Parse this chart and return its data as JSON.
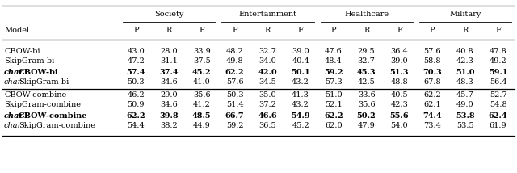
{
  "col_groups": [
    "Society",
    "Entertainment",
    "Healthcare",
    "Military"
  ],
  "sub_cols": [
    "P",
    "R",
    "F"
  ],
  "row_label_col": "Model",
  "rows": [
    {
      "model": "CBOW-bi",
      "italic_prefix": false,
      "bold": false,
      "values": [
        "43.0",
        "28.0",
        "33.9",
        "48.2",
        "32.7",
        "39.0",
        "47.6",
        "29.5",
        "36.4",
        "57.6",
        "40.8",
        "47.8"
      ]
    },
    {
      "model": "SkipGram-bi",
      "italic_prefix": false,
      "bold": false,
      "values": [
        "47.2",
        "31.1",
        "37.5",
        "49.8",
        "34.0",
        "40.4",
        "48.4",
        "32.7",
        "39.0",
        "58.8",
        "42.3",
        "49.2"
      ]
    },
    {
      "model": "charCBOW-bi",
      "italic_prefix": true,
      "bold": true,
      "values": [
        "57.4",
        "37.4",
        "45.2",
        "62.2",
        "42.0",
        "50.1",
        "59.2",
        "45.3",
        "51.3",
        "70.3",
        "51.0",
        "59.1"
      ]
    },
    {
      "model": "charSkipGram-bi",
      "italic_prefix": true,
      "bold": false,
      "values": [
        "50.3",
        "34.6",
        "41.0",
        "57.6",
        "34.5",
        "43.2",
        "57.3",
        "42.5",
        "48.8",
        "67.8",
        "48.3",
        "56.4"
      ]
    },
    {
      "model": "CBOW-combine",
      "italic_prefix": false,
      "bold": false,
      "values": [
        "46.2",
        "29.0",
        "35.6",
        "50.3",
        "35.0",
        "41.3",
        "51.0",
        "33.6",
        "40.5",
        "62.2",
        "45.7",
        "52.7"
      ]
    },
    {
      "model": "SkipGram-combine",
      "italic_prefix": false,
      "bold": false,
      "values": [
        "50.9",
        "34.6",
        "41.2",
        "51.4",
        "37.2",
        "43.2",
        "52.1",
        "35.6",
        "42.3",
        "62.1",
        "49.0",
        "54.8"
      ]
    },
    {
      "model": "charCBOW-combine",
      "italic_prefix": true,
      "bold": true,
      "values": [
        "62.2",
        "39.8",
        "48.5",
        "66.7",
        "46.6",
        "54.9",
        "62.2",
        "50.2",
        "55.6",
        "74.4",
        "53.8",
        "62.4"
      ]
    },
    {
      "model": "charSkipGram-combine",
      "italic_prefix": true,
      "bold": false,
      "values": [
        "54.4",
        "38.2",
        "44.9",
        "59.2",
        "36.5",
        "45.2",
        "62.0",
        "47.9",
        "54.0",
        "73.4",
        "53.5",
        "61.9"
      ]
    }
  ],
  "figsize": [
    6.4,
    2.14
  ],
  "dpi": 100,
  "fontsize": 7.0,
  "fontfamily": "DejaVu Serif"
}
